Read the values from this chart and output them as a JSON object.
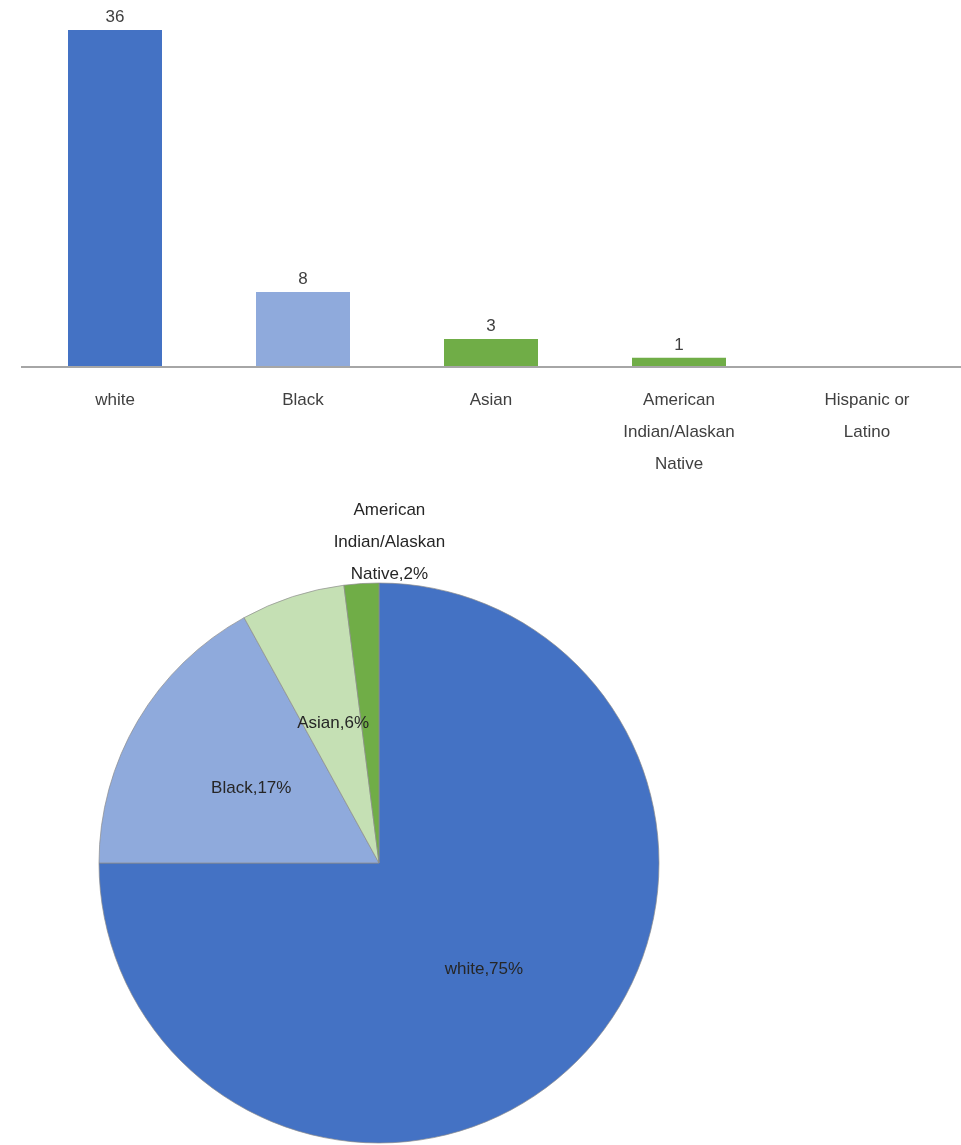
{
  "chart_data": [
    {
      "type": "bar",
      "categories": [
        "white",
        "Black",
        "Asian",
        "American Indian/Alaskan Native",
        "Hispanic or Latino"
      ],
      "values": [
        36,
        8,
        3,
        1,
        0
      ],
      "colors": [
        "#4472c4",
        "#8faadc",
        "#70ad47",
        "#70ad47",
        "#70ad47"
      ],
      "value_labels": [
        "36",
        "8",
        "3",
        "1",
        null
      ]
    },
    {
      "type": "pie",
      "categories": [
        "white",
        "Black",
        "Asian",
        "American Indian/Alaskan Native"
      ],
      "values": [
        75,
        17,
        6,
        2
      ],
      "colors": [
        "#4472c4",
        "#8faadc",
        "#c5e0b4",
        "#70ad47"
      ],
      "value_labels": [
        "75%",
        "17%",
        "6%",
        "2%"
      ]
    }
  ]
}
